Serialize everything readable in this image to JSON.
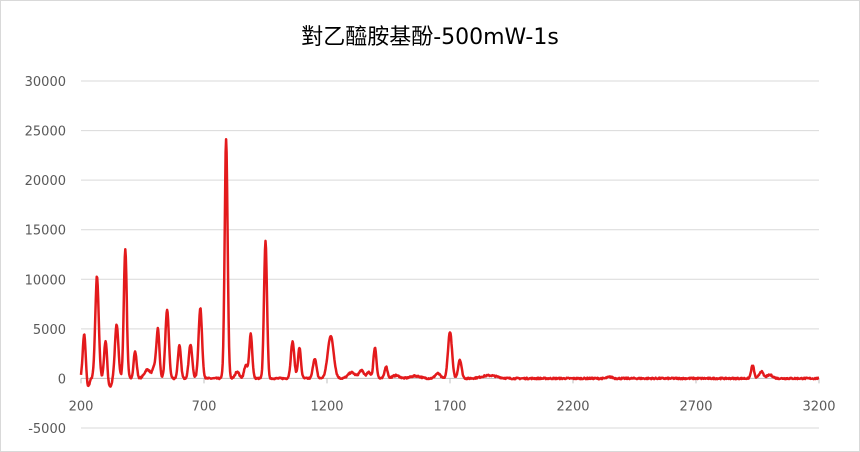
{
  "chart_data": {
    "type": "line",
    "title": "對乙醯胺基酚-500mW-1s",
    "xlabel": "",
    "ylabel": "",
    "xlim": [
      200,
      3200
    ],
    "ylim": [
      -5000,
      30000
    ],
    "x_ticks": [
      "200",
      "700",
      "1200",
      "1700",
      "2200",
      "2700",
      "3200"
    ],
    "y_ticks": [
      "30000",
      "25000",
      "20000",
      "15000",
      "10000",
      "5000",
      "0",
      "-5000"
    ],
    "grid": "horizontal",
    "legend": "none",
    "line_color": "#e31a1c",
    "baseline_noise": 150,
    "peaks": [
      {
        "x": 213,
        "y": 4500,
        "w": 6
      },
      {
        "x": 265,
        "y": 10300,
        "w": 7
      },
      {
        "x": 300,
        "y": 3800,
        "w": 6
      },
      {
        "x": 345,
        "y": 5400,
        "w": 7
      },
      {
        "x": 380,
        "y": 13000,
        "w": 6
      },
      {
        "x": 420,
        "y": 2700,
        "w": 6
      },
      {
        "x": 470,
        "y": 900,
        "w": 12
      },
      {
        "x": 500,
        "y": 1200,
        "w": 8
      },
      {
        "x": 513,
        "y": 4700,
        "w": 6
      },
      {
        "x": 550,
        "y": 6900,
        "w": 7
      },
      {
        "x": 600,
        "y": 3300,
        "w": 6
      },
      {
        "x": 645,
        "y": 3400,
        "w": 7
      },
      {
        "x": 685,
        "y": 7100,
        "w": 7
      },
      {
        "x": 790,
        "y": 24100,
        "w": 6
      },
      {
        "x": 835,
        "y": 700,
        "w": 8
      },
      {
        "x": 870,
        "y": 1300,
        "w": 7
      },
      {
        "x": 890,
        "y": 4500,
        "w": 6
      },
      {
        "x": 950,
        "y": 13800,
        "w": 6
      },
      {
        "x": 1060,
        "y": 3700,
        "w": 7
      },
      {
        "x": 1088,
        "y": 3100,
        "w": 6
      },
      {
        "x": 1150,
        "y": 2000,
        "w": 7
      },
      {
        "x": 1215,
        "y": 4300,
        "w": 12
      },
      {
        "x": 1300,
        "y": 600,
        "w": 14
      },
      {
        "x": 1340,
        "y": 800,
        "w": 10
      },
      {
        "x": 1370,
        "y": 600,
        "w": 8
      },
      {
        "x": 1395,
        "y": 3100,
        "w": 6
      },
      {
        "x": 1440,
        "y": 1200,
        "w": 6
      },
      {
        "x": 1480,
        "y": 300,
        "w": 14
      },
      {
        "x": 1560,
        "y": 250,
        "w": 20
      },
      {
        "x": 1650,
        "y": 500,
        "w": 10
      },
      {
        "x": 1700,
        "y": 4700,
        "w": 8
      },
      {
        "x": 1740,
        "y": 1900,
        "w": 7
      },
      {
        "x": 1860,
        "y": 300,
        "w": 30
      },
      {
        "x": 2350,
        "y": 150,
        "w": 10
      },
      {
        "x": 2930,
        "y": 1300,
        "w": 6
      },
      {
        "x": 2965,
        "y": 700,
        "w": 8
      },
      {
        "x": 3000,
        "y": 350,
        "w": 12
      }
    ],
    "dips": [
      {
        "x": 228,
        "y": -900,
        "w": 6
      },
      {
        "x": 320,
        "y": -800,
        "w": 6
      },
      {
        "x": 310,
        "y": -500,
        "w": 4
      }
    ]
  }
}
